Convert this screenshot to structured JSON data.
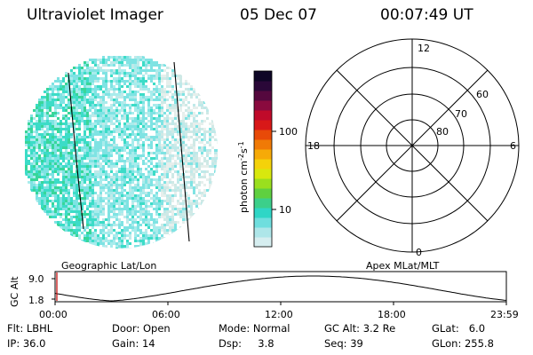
{
  "header": {
    "title": "Ultraviolet Imager",
    "date": "05 Dec 07",
    "time": "00:07:49 UT"
  },
  "colorbar": {
    "label_main": "photon cm",
    "label_exp1": "-2",
    "label_mid": "s",
    "label_exp2": "-1",
    "ticks": [
      "100",
      "10"
    ],
    "colors": [
      "#d6eef0",
      "#aee6e9",
      "#6fdede",
      "#2fd6c6",
      "#3ccf8a",
      "#5fd040",
      "#9adf1e",
      "#d8e80e",
      "#f4d20a",
      "#f6aa08",
      "#f07a06",
      "#e84a08",
      "#d81818",
      "#c00a2a",
      "#8a0a3e",
      "#55083e",
      "#2a0838",
      "#0e0626"
    ]
  },
  "image_panel": {
    "label": "Geographic Lat/Lon",
    "pixel_colors": [
      "#7fe3e3",
      "#3cdcc7",
      "#38d69a",
      "#a8ecec",
      "#cfe9e6",
      "#e6efec",
      "#bfe9e9"
    ]
  },
  "polar_panel": {
    "label": "Apex MLat/MLT",
    "mlt_labels": {
      "top": "12",
      "left": "18",
      "right": "6",
      "bottom": "0"
    },
    "lat_labels": [
      "60",
      "70",
      "80"
    ]
  },
  "timeline": {
    "ylabel": "GC Alt",
    "ytick_high": "9.0",
    "ytick_low": "1.8",
    "xticks": [
      "00:00",
      "06:00",
      "12:00",
      "18:00",
      "23:59"
    ]
  },
  "info": {
    "row1": {
      "flt": "Flt: LBHL",
      "door": "Door: Open",
      "mode": "Mode: Normal",
      "gcalt": "GC Alt: 3.2 Re",
      "glat": "GLat:   6.0"
    },
    "row2": {
      "ip": "IP: 36.0",
      "gain": "Gain: 14",
      "dsp": "Dsp:     3.8",
      "seq": "Seq: 39",
      "glon": "GLon: 255.8"
    }
  }
}
